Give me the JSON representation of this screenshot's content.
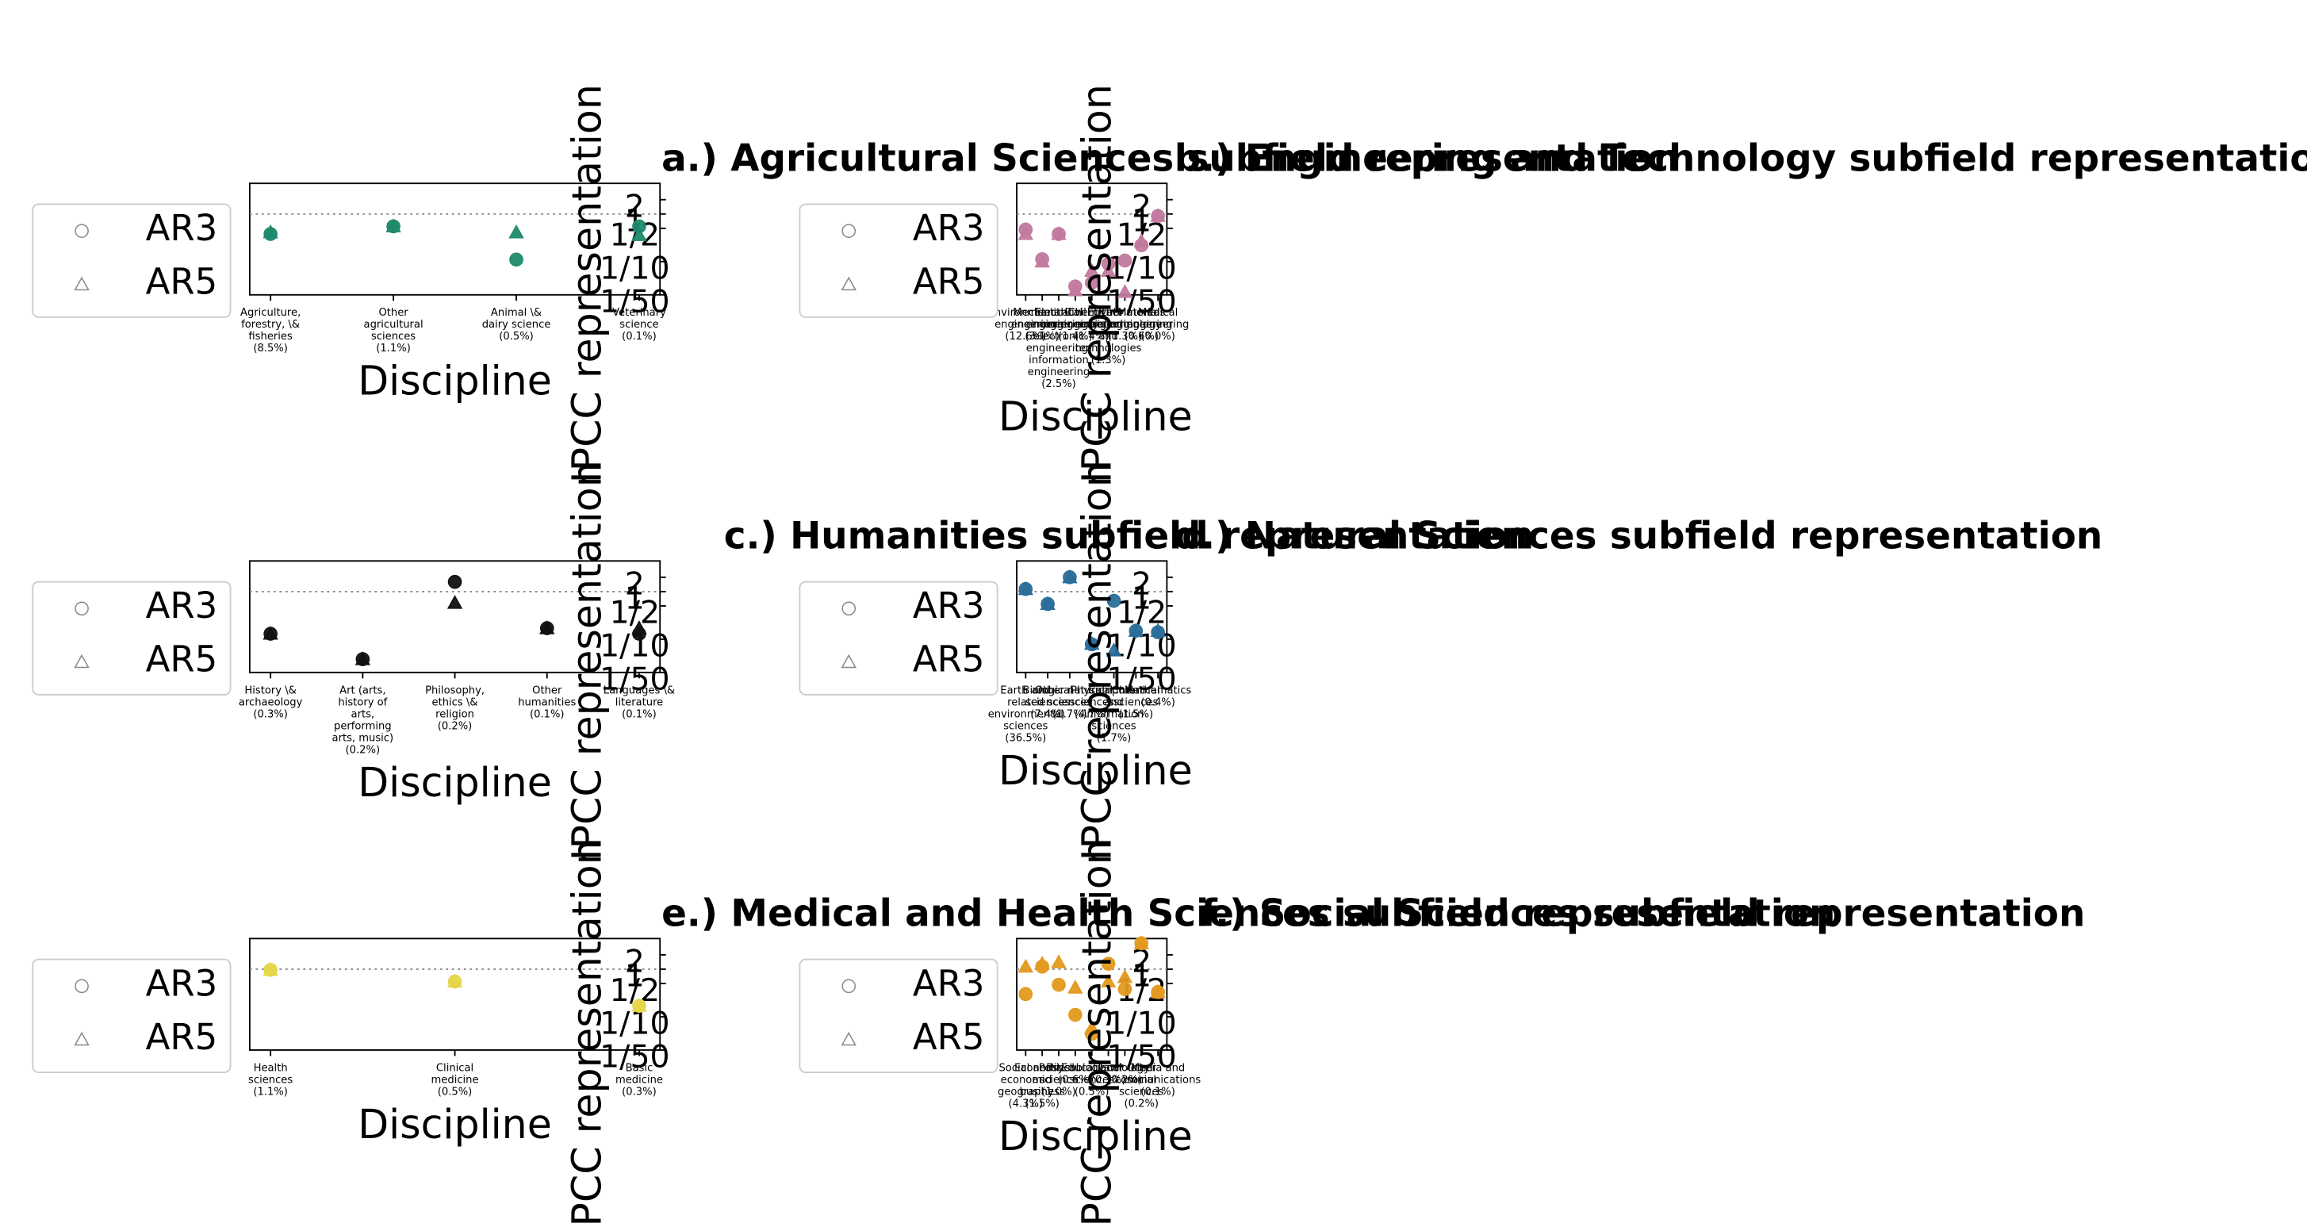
{
  "chart_data": [
    {
      "type": "dot",
      "title": "a.) Agricultural Sciences subfield representation",
      "xlabel": "Discipline",
      "ylabel": "IPCC representation",
      "categories": [
        "Agriculture,\nforestry, \\&\nfisheries\n(8.5%)",
        "Other\nagricultural\nsciences\n(1.1%)",
        "Animal \\&\ndairy science\n(0.5%)",
        "Veterinary\nscience\n(0.1%)"
      ],
      "series": [
        {
          "name": "AR3",
          "marker": "circle",
          "color": "#1f8a6c",
          "values": [
            0.38,
            0.55,
            0.11,
            0.55
          ]
        },
        {
          "name": "AR5",
          "marker": "triangle",
          "color": "#1f8a6c",
          "values": [
            0.41,
            0.55,
            0.41,
            0.36
          ]
        }
      ],
      "ylim": [
        0.02,
        4.4
      ],
      "log_y": true,
      "yticks": [
        2,
        1,
        {
          "value": 0.5,
          "label": "1/2"
        },
        {
          "value": 0.1,
          "label": "1/10"
        },
        {
          "value": 0.02,
          "label": "1/50"
        }
      ],
      "reference_line": 1,
      "legend": "left"
    },
    {
      "type": "dot",
      "title": "b.) Engineering and Technology subfield representation",
      "xlabel": "Discipline",
      "ylabel": "IPCC representation",
      "categories": [
        "Environmental\nengineering\n(12.6%)",
        "Mechanical\nengineering\n(3.1%)",
        "Electrical\nengineering,\nelectronic\nengineering,\ninformation\nengineering\n(2.5%)",
        "Civil\nengineering\n(1.4%)",
        "Chemical\nengineering\n(1.4%)",
        "Other\nengineering\nand\ntechnologies\n(1.3%)",
        "Environmental\nbiotechnology\n(1.3%)",
        "Materials\nengineering\n(0.6%)",
        "Medical\nengineering\n(0.0%)"
      ],
      "series": [
        {
          "name": "AR3",
          "marker": "circle",
          "color": "#c27a9f",
          "values": [
            0.47,
            0.112,
            0.38,
            0.03,
            0.036,
            0.09,
            0.105,
            0.22,
            0.91
          ]
        },
        {
          "name": "AR5",
          "marker": "triangle",
          "color": "#c27a9f",
          "values": [
            0.38,
            0.1,
            0.38,
            0.025,
            0.064,
            0.064,
            0.023,
            0.27,
            0.91
          ]
        }
      ],
      "ylim": [
        0.02,
        4.4
      ],
      "log_y": true,
      "yticks": [
        2,
        1,
        {
          "value": 0.5,
          "label": "1/2"
        },
        {
          "value": 0.1,
          "label": "1/10"
        },
        {
          "value": 0.02,
          "label": "1/50"
        }
      ],
      "reference_line": 1,
      "legend": "left"
    },
    {
      "type": "dot",
      "title": "c.) Humanities subfield representation",
      "xlabel": "Discipline",
      "ylabel": "IPCC representation",
      "categories": [
        "History \\&\narchaeology\n(0.3%)",
        "Art (arts,\nhistory of\narts,\nperforming\narts, music)\n(0.2%)",
        "Philosophy,\nethics \\&\nreligion\n(0.2%)",
        "Other\nhumanities\n(0.1%)",
        "Languages \\&\nliterature\n(0.1%)"
      ],
      "series": [
        {
          "name": "AR3",
          "marker": "circle",
          "color": "#111111",
          "values": [
            0.13,
            0.038,
            1.6,
            0.17,
            0.13
          ]
        },
        {
          "name": "AR5",
          "marker": "triangle",
          "color": "#111111",
          "values": [
            0.13,
            0.038,
            0.58,
            0.17,
            0.17
          ]
        }
      ],
      "ylim": [
        0.02,
        4.4
      ],
      "log_y": true,
      "yticks": [
        2,
        1,
        {
          "value": 0.5,
          "label": "1/2"
        },
        {
          "value": 0.1,
          "label": "1/10"
        },
        {
          "value": 0.02,
          "label": "1/50"
        }
      ],
      "reference_line": 1,
      "legend": "left"
    },
    {
      "type": "dot",
      "title": "d.) Natural Sciences subfield representation",
      "xlabel": "Discipline",
      "ylabel": "IPCC representation",
      "categories": [
        "Earth and\nrelated\nenvironmental\nsciences\n(36.5%)",
        "Biological\nsciences\n(7.4%)",
        "Other natural\nsciences\n(1.7%)",
        "Physical\nsciences\n(4.7%)",
        "Computer\nand\ninformation\nsciences\n(1.7%)",
        "Chemical\nsciences\n(1.5%)",
        "Mathematics\n(0.4%)"
      ],
      "series": [
        {
          "name": "AR3",
          "marker": "circle",
          "color": "#2a6e99",
          "values": [
            1.13,
            0.55,
            2.0,
            0.078,
            0.64,
            0.15,
            0.14
          ]
        },
        {
          "name": "AR5",
          "marker": "triangle",
          "color": "#2a6e99",
          "values": [
            1.13,
            0.55,
            2.0,
            0.08,
            0.058,
            0.15,
            0.15
          ]
        }
      ],
      "ylim": [
        0.02,
        4.4
      ],
      "log_y": true,
      "yticks": [
        2,
        1,
        {
          "value": 0.5,
          "label": "1/2"
        },
        {
          "value": 0.1,
          "label": "1/10"
        },
        {
          "value": 0.02,
          "label": "1/50"
        }
      ],
      "reference_line": 1,
      "legend": "left"
    },
    {
      "type": "dot",
      "title": "e.) Medical and Health Sciences subfield representation",
      "xlabel": "Discipline",
      "ylabel": "IPCC representation",
      "categories": [
        "Health\nsciences\n(1.1%)",
        "Clinical\nmedicine\n(0.5%)",
        "Basic\nmedicine\n(0.3%)"
      ],
      "series": [
        {
          "name": "AR3",
          "marker": "circle",
          "color": "#e6d64a",
          "values": [
            0.97,
            0.55,
            0.17
          ]
        },
        {
          "name": "AR5",
          "marker": "triangle",
          "color": "#e6d64a",
          "values": [
            0.97,
            0.55,
            0.17
          ]
        }
      ],
      "ylim": [
        0.02,
        4.4
      ],
      "log_y": true,
      "yticks": [
        2,
        1,
        {
          "value": 0.5,
          "label": "1/2"
        },
        {
          "value": 0.1,
          "label": "1/10"
        },
        {
          "value": 0.02,
          "label": "1/50"
        }
      ],
      "reference_line": 1,
      "legend": "left"
    },
    {
      "type": "dot",
      "title": "f.) Social Sciences subfield representation",
      "xlabel": "Discipline",
      "ylabel": "IPCC representation",
      "categories": [
        "Social and\neconomic\ngeography\n(4.3%)",
        "Economics\nand\nbusiness\n(1.5%)",
        "Political\nscience\n(1.0%)",
        "Psychology\n(0.6%)",
        "Educational\nsciences\n(0.5%)",
        "Law\n(0.3%)",
        "Sociology\n(0.2%)",
        "Other\nsocial\nsciences\n(0.2%)",
        "Media and\ncommunications\n(0.1%)"
      ],
      "series": [
        {
          "name": "AR3",
          "marker": "circle",
          "color": "#e39a1f",
          "values": [
            0.3,
            1.13,
            0.47,
            0.11,
            0.044,
            1.3,
            0.38,
            3.5,
            0.33
          ]
        },
        {
          "name": "AR5",
          "marker": "triangle",
          "color": "#e39a1f",
          "values": [
            1.13,
            1.3,
            1.4,
            0.41,
            0.058,
            0.55,
            0.68,
            3.5,
            0.33
          ]
        }
      ],
      "ylim": [
        0.02,
        4.4
      ],
      "log_y": true,
      "yticks": [
        2,
        1,
        {
          "value": 0.5,
          "label": "1/2"
        },
        {
          "value": 0.1,
          "label": "1/10"
        },
        {
          "value": 0.02,
          "label": "1/50"
        }
      ],
      "reference_line": 1,
      "legend": "left"
    }
  ]
}
